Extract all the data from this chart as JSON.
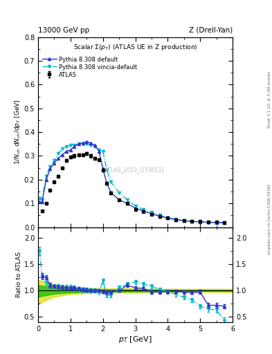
{
  "title_top_left": "13000 GeV pp",
  "title_top_right": "Z (Drell-Yan)",
  "plot_title": "Scalar Σ(p_T) (ATLAS UE in Z production)",
  "ylabel_main": "1/N$_{ch}$ dN$_{ch}$/dp$_T$ [GeV]",
  "ylabel_ratio": "Ratio to ATLAS",
  "xlabel": "p_T [GeV]",
  "watermark": "ATLAS_2019_I1736531",
  "right_label_top": "Rivet 3.1.10, ≥ 3.3M events",
  "right_label_bottom": "mcplots.cern.ch [arXiv:1306.3436]",
  "atlas_x": [
    0.12,
    0.25,
    0.37,
    0.5,
    0.62,
    0.75,
    0.88,
    1.0,
    1.12,
    1.25,
    1.38,
    1.5,
    1.62,
    1.75,
    1.88,
    2.0,
    2.12,
    2.25,
    2.5,
    2.75,
    3.0,
    3.25,
    3.5,
    3.75,
    4.0,
    4.25,
    4.5,
    4.75,
    5.0,
    5.25,
    5.5,
    5.75
  ],
  "atlas_y": [
    0.068,
    0.1,
    0.155,
    0.19,
    0.215,
    0.25,
    0.28,
    0.295,
    0.3,
    0.305,
    0.305,
    0.31,
    0.3,
    0.29,
    0.285,
    0.24,
    0.185,
    0.145,
    0.115,
    0.1,
    0.075,
    0.065,
    0.055,
    0.045,
    0.038,
    0.032,
    0.028,
    0.025,
    0.024,
    0.022,
    0.021,
    0.02
  ],
  "atlas_yerr": [
    0.004,
    0.004,
    0.005,
    0.005,
    0.005,
    0.005,
    0.006,
    0.006,
    0.006,
    0.006,
    0.006,
    0.007,
    0.006,
    0.006,
    0.006,
    0.005,
    0.005,
    0.004,
    0.004,
    0.003,
    0.003,
    0.002,
    0.002,
    0.002,
    0.002,
    0.002,
    0.002,
    0.002,
    0.002,
    0.002,
    0.002,
    0.002
  ],
  "py_default_x": [
    0.05,
    0.12,
    0.25,
    0.37,
    0.5,
    0.62,
    0.75,
    0.88,
    1.0,
    1.12,
    1.25,
    1.38,
    1.5,
    1.62,
    1.75,
    1.88,
    2.0,
    2.12,
    2.25,
    2.5,
    2.75,
    3.0,
    3.25,
    3.5,
    3.75,
    4.0,
    4.25,
    4.5,
    4.75,
    5.0,
    5.25,
    5.5,
    5.75
  ],
  "py_default_y": [
    0.105,
    0.105,
    0.2,
    0.245,
    0.27,
    0.29,
    0.305,
    0.32,
    0.325,
    0.34,
    0.35,
    0.355,
    0.36,
    0.355,
    0.345,
    0.32,
    0.245,
    0.185,
    0.145,
    0.115,
    0.1,
    0.08,
    0.068,
    0.056,
    0.046,
    0.038,
    0.032,
    0.027,
    0.024,
    0.022,
    0.021,
    0.02,
    0.019
  ],
  "py_vincia_x": [
    0.05,
    0.12,
    0.25,
    0.37,
    0.5,
    0.62,
    0.75,
    0.88,
    1.0,
    1.12,
    1.25,
    1.38,
    1.5,
    1.62,
    1.75,
    1.88,
    2.0,
    2.12,
    2.25,
    2.5,
    2.75,
    3.0,
    3.25,
    3.5,
    3.75,
    4.0,
    4.25,
    4.5,
    4.75,
    5.0,
    5.25,
    5.5,
    5.75
  ],
  "py_vincia_y": [
    0.12,
    0.115,
    0.215,
    0.255,
    0.28,
    0.31,
    0.33,
    0.34,
    0.345,
    0.345,
    0.35,
    0.35,
    0.35,
    0.345,
    0.34,
    0.325,
    0.32,
    0.24,
    0.19,
    0.145,
    0.115,
    0.09,
    0.075,
    0.062,
    0.05,
    0.04,
    0.033,
    0.028,
    0.024,
    0.022,
    0.02,
    0.019,
    0.018
  ],
  "ratio_default_x": [
    0.12,
    0.25,
    0.37,
    0.5,
    0.62,
    0.75,
    0.88,
    1.0,
    1.12,
    1.25,
    1.38,
    1.5,
    1.62,
    1.75,
    1.88,
    2.0,
    2.12,
    2.25,
    2.5,
    2.75,
    3.0,
    3.25,
    3.5,
    3.75,
    4.0,
    4.25,
    4.5,
    4.75,
    5.0,
    5.25,
    5.5,
    5.75
  ],
  "ratio_default_y": [
    1.28,
    1.25,
    1.1,
    1.08,
    1.07,
    1.06,
    1.05,
    1.05,
    1.05,
    1.04,
    1.02,
    1.01,
    1.0,
    1.0,
    1.0,
    0.98,
    0.97,
    0.97,
    1.0,
    1.1,
    1.05,
    1.04,
    0.97,
    0.97,
    0.98,
    0.98,
    0.97,
    0.96,
    0.97,
    0.72,
    0.72,
    0.7
  ],
  "ratio_default_yerr": [
    0.05,
    0.04,
    0.04,
    0.03,
    0.03,
    0.03,
    0.03,
    0.03,
    0.03,
    0.03,
    0.03,
    0.03,
    0.03,
    0.03,
    0.03,
    0.03,
    0.03,
    0.03,
    0.03,
    0.03,
    0.03,
    0.03,
    0.03,
    0.03,
    0.03,
    0.03,
    0.03,
    0.03,
    0.04,
    0.04,
    0.04,
    0.04
  ],
  "ratio_vincia_x": [
    0.05,
    0.12,
    0.25,
    0.37,
    0.5,
    0.62,
    0.75,
    0.88,
    1.0,
    1.12,
    1.25,
    1.38,
    1.5,
    1.62,
    1.75,
    1.88,
    2.0,
    2.12,
    2.25,
    2.5,
    2.75,
    3.0,
    3.25,
    3.5,
    3.75,
    4.0,
    4.25,
    4.5,
    4.75,
    5.0,
    5.25,
    5.5,
    5.75
  ],
  "ratio_vincia_y": [
    1.75,
    1.26,
    1.14,
    1.1,
    1.08,
    1.08,
    1.06,
    1.06,
    1.06,
    1.05,
    1.03,
    1.02,
    1.01,
    1.0,
    1.0,
    0.98,
    1.18,
    0.91,
    0.91,
    1.05,
    1.12,
    1.16,
    1.12,
    1.08,
    1.02,
    0.97,
    0.93,
    0.87,
    0.82,
    0.7,
    0.65,
    0.63,
    0.43
  ],
  "ratio_vincia_yerr": [
    0.08,
    0.05,
    0.04,
    0.04,
    0.04,
    0.04,
    0.04,
    0.04,
    0.04,
    0.04,
    0.04,
    0.04,
    0.04,
    0.04,
    0.04,
    0.04,
    0.05,
    0.04,
    0.04,
    0.04,
    0.04,
    0.04,
    0.04,
    0.04,
    0.04,
    0.04,
    0.04,
    0.04,
    0.04,
    0.04,
    0.05,
    0.05,
    0.06
  ],
  "band_x": [
    0.0,
    0.5,
    1.0,
    1.5,
    2.0,
    2.5,
    3.0,
    3.5,
    4.0,
    4.5,
    5.0,
    6.0
  ],
  "band_yellow_low": [
    0.75,
    0.88,
    0.93,
    0.95,
    0.96,
    0.96,
    0.96,
    0.97,
    0.97,
    0.97,
    0.97,
    0.97
  ],
  "band_yellow_high": [
    1.2,
    1.12,
    1.07,
    1.05,
    1.04,
    1.04,
    1.04,
    1.03,
    1.03,
    1.03,
    1.03,
    1.03
  ],
  "band_green_low": [
    0.88,
    0.94,
    0.96,
    0.97,
    0.98,
    0.98,
    0.98,
    0.98,
    0.99,
    0.99,
    0.99,
    0.99
  ],
  "band_green_high": [
    1.1,
    1.06,
    1.04,
    1.03,
    1.02,
    1.02,
    1.02,
    1.02,
    1.01,
    1.01,
    1.01,
    1.01
  ],
  "color_atlas": "#000000",
  "color_default": "#3333cc",
  "color_vincia": "#00bbcc",
  "color_green": "#00bb00",
  "color_yellow": "#dddd00",
  "xlim": [
    0,
    6.0
  ],
  "ylim_main": [
    0.0,
    0.8
  ],
  "ylim_ratio": [
    0.4,
    2.2
  ]
}
